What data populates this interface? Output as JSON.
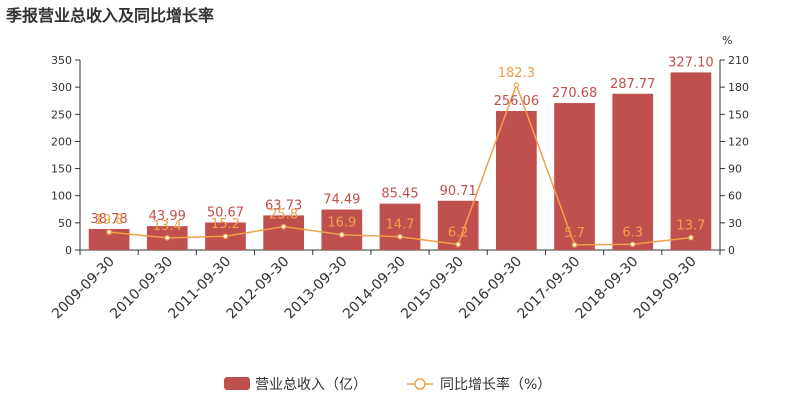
{
  "title": "季报营业总收入及同比增长率",
  "chart_data": {
    "type": "bar",
    "categories": [
      "2009-09-30",
      "2010-09-30",
      "2011-09-30",
      "2012-09-30",
      "2013-09-30",
      "2014-09-30",
      "2015-09-30",
      "2016-09-30",
      "2017-09-30",
      "2018-09-30",
      "2019-09-30"
    ],
    "series": [
      {
        "name": "营业总收入（亿）",
        "type": "bar",
        "axis": "left",
        "color": "#c0504d",
        "values": [
          38.78,
          43.99,
          50.67,
          63.73,
          74.49,
          85.45,
          90.71,
          256.06,
          270.68,
          287.77,
          327.1
        ],
        "labels": [
          "38.78",
          "43.99",
          "50.67",
          "63.73",
          "74.49",
          "85.45",
          "90.71",
          "256.06",
          "270.68",
          "287.77",
          "327.10"
        ]
      },
      {
        "name": "同比增长率（%）",
        "type": "line",
        "axis": "right",
        "color": "#f0a04b",
        "values": [
          19.8,
          13.4,
          15.2,
          25.8,
          16.9,
          14.7,
          6.2,
          182.3,
          5.7,
          6.3,
          13.7
        ],
        "labels": [
          "19.8",
          "13.4",
          "15.2",
          "25.8",
          "16.9",
          "14.7",
          "6.2",
          "182.3",
          "5.7",
          "6.3",
          "13.7"
        ]
      }
    ],
    "y_left": {
      "min": 0,
      "max": 350,
      "ticks": [
        "0",
        "50",
        "100",
        "150",
        "200",
        "250",
        "300",
        "350"
      ]
    },
    "y_right": {
      "min": 0,
      "max": 210,
      "ticks": [
        "0",
        "30",
        "60",
        "90",
        "120",
        "150",
        "180",
        "210"
      ],
      "unit": "%"
    },
    "legend_position": "bottom",
    "grid": false
  }
}
